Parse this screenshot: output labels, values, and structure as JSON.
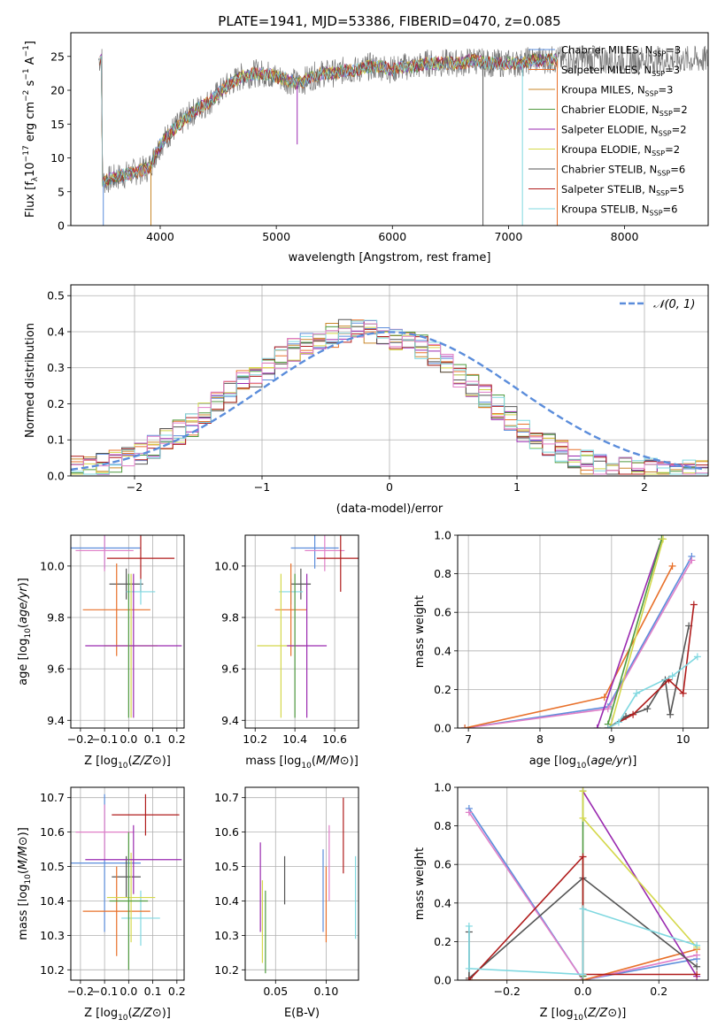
{
  "figure_title": "PLATE=1941, MJD=53386, FIBERID=0470, z=0.085",
  "colors": {
    "chabrier_miles": "#5b8ddb",
    "salpeter_miles": "#e8702a",
    "kroupa_miles": "#c9872a",
    "chabrier_elodie": "#4f9a3f",
    "salpeter_elodie": "#9a2ab0",
    "kroupa_elodie": "#d4d84a",
    "chabrier_stelib": "#555555",
    "salpeter_stelib": "#b01c1c",
    "kroupa_stelib": "#7fd8e0",
    "pink": "#e07fc8",
    "normal_curve": "#5b8ddb"
  },
  "chart_data": [
    {
      "id": "spectrum",
      "type": "line",
      "title": "PLATE=1941, MJD=53386, FIBERID=0470, z=0.085",
      "xlabel": "wavelength [Angstrom, rest frame]",
      "ylabel": "Flux [f",
      "ylabel_full": "Flux [fλ10⁻¹⁷ erg cm⁻² s⁻¹ A⁻¹]",
      "xlim": [
        3230,
        8720
      ],
      "ylim": [
        0,
        28.5
      ],
      "xticks": [
        4000,
        5000,
        6000,
        7000,
        8000
      ],
      "yticks": [
        0,
        5,
        10,
        15,
        20,
        25
      ],
      "grid": false,
      "legend_position": "top-right",
      "series_envelope": {
        "x": [
          3500,
          3600,
          3700,
          3800,
          3900,
          4000,
          4100,
          4200,
          4300,
          4400,
          4500,
          4600,
          4700,
          4800,
          4900,
          5000,
          5100,
          5200,
          5300,
          5400,
          5500,
          5600,
          5700,
          5800,
          5900,
          6000,
          6100,
          6200,
          6300,
          6400,
          6500,
          6600,
          6700,
          6800,
          6900,
          7000,
          7100,
          7200,
          7300,
          7400
        ],
        "y": [
          6.5,
          7.0,
          7.5,
          8.0,
          8.5,
          12.0,
          14.0,
          15.5,
          17.0,
          18.0,
          19.5,
          21.0,
          22.0,
          22.5,
          22.5,
          22.0,
          21.5,
          21.0,
          22.0,
          22.5,
          22.5,
          23.0,
          23.0,
          23.5,
          23.5,
          23.0,
          23.5,
          23.5,
          24.0,
          24.0,
          24.0,
          24.0,
          24.5,
          24.0,
          24.0,
          24.0,
          24.0,
          24.5,
          24.5,
          24.5
        ]
      },
      "legend": [
        {
          "label": "Chabrier MILES, N",
          "sub": "SSP",
          "tail": "=3",
          "color": "#5b8ddb"
        },
        {
          "label": "Salpeter MILES, N",
          "sub": "SSP",
          "tail": "=3",
          "color": "#e8702a"
        },
        {
          "label": "Kroupa MILES, N",
          "sub": "SSP",
          "tail": "=3",
          "color": "#c9872a"
        },
        {
          "label": "Chabrier ELODIE, N",
          "sub": "SSP",
          "tail": "=2",
          "color": "#4f9a3f"
        },
        {
          "label": "Salpeter ELODIE, N",
          "sub": "SSP",
          "tail": "=2",
          "color": "#9a2ab0"
        },
        {
          "label": "Kroupa ELODIE, N",
          "sub": "SSP",
          "tail": "=2",
          "color": "#d4d84a"
        },
        {
          "label": "Chabrier STELIB, N",
          "sub": "SSP",
          "tail": "=6",
          "color": "#555555"
        },
        {
          "label": "Salpeter STELIB, N",
          "sub": "SSP",
          "tail": "=5",
          "color": "#b01c1c"
        },
        {
          "label": "Kroupa STELIB, N",
          "sub": "SSP",
          "tail": "=6",
          "color": "#7fd8e0"
        }
      ]
    },
    {
      "id": "residuals",
      "type": "line",
      "xlabel": "(data-model)/error",
      "ylabel": "Normed distribution",
      "xlim": [
        -2.5,
        2.5
      ],
      "ylim": [
        0,
        0.53
      ],
      "xticks": [
        -2,
        -1,
        0,
        1,
        2
      ],
      "xtick_labels": [
        "−2",
        "−1",
        "0",
        "1",
        "2"
      ],
      "yticks": [
        0.0,
        0.1,
        0.2,
        0.3,
        0.4,
        0.5
      ],
      "ytick_labels": [
        "0.0",
        "0.1",
        "0.2",
        "0.3",
        "0.4",
        "0.5"
      ],
      "grid": true,
      "legend_position": "top-right",
      "normal_label": "𝒩(0, 1)",
      "bin_width": 0.1,
      "histogram_base": [
        0.02,
        0.022,
        0.03,
        0.04,
        0.05,
        0.06,
        0.08,
        0.1,
        0.12,
        0.14,
        0.17,
        0.2,
        0.23,
        0.26,
        0.28,
        0.3,
        0.33,
        0.35,
        0.37,
        0.38,
        0.39,
        0.4,
        0.4,
        0.4,
        0.39,
        0.38,
        0.37,
        0.36,
        0.34,
        0.31,
        0.28,
        0.25,
        0.22,
        0.19,
        0.16,
        0.13,
        0.11,
        0.09,
        0.07,
        0.05,
        0.04,
        0.03,
        0.025,
        0.02,
        0.02,
        0.015,
        0.015,
        0.015,
        0.015,
        0.015
      ]
    },
    {
      "id": "age_vs_Z",
      "type": "scatter",
      "xlabel": "Z [log",
      "ylabel": "age  [log",
      "xlabel_full": "Z [log10(Z/Z⊙)]",
      "ylabel_full": "age  [log10(age/yr)]",
      "xlim": [
        -0.24,
        0.23
      ],
      "ylim": [
        9.37,
        10.12
      ],
      "xticks": [
        -0.2,
        -0.1,
        0.0,
        0.1,
        0.2
      ],
      "xtick_labels": [
        "−0.2",
        "−0.1",
        "0.0",
        "0.1",
        "0.2"
      ],
      "yticks": [
        9.4,
        9.6,
        9.8,
        10.0
      ],
      "ytick_labels": [
        "9.4",
        "9.6",
        "9.8",
        "10.0"
      ],
      "grid": true,
      "points": [
        {
          "x": -0.1,
          "y": 10.07,
          "xerr": 0.15,
          "yerr": 0.08,
          "color": "#5b8ddb"
        },
        {
          "x": -0.1,
          "y": 10.06,
          "xerr": 0.12,
          "yerr": 0.08,
          "color": "#e07fc8"
        },
        {
          "x": 0.05,
          "y": 10.03,
          "xerr": 0.14,
          "yerr": 0.13,
          "color": "#b01c1c"
        },
        {
          "x": -0.01,
          "y": 9.93,
          "xerr": 0.07,
          "yerr": 0.06,
          "color": "#555555"
        },
        {
          "x": 0.05,
          "y": 9.9,
          "xerr": 0.06,
          "yerr": 0.05,
          "color": "#7fd8e0"
        },
        {
          "x": -0.05,
          "y": 9.83,
          "xerr": 0.14,
          "yerr": 0.18,
          "color": "#e8702a"
        },
        {
          "x": 0.01,
          "y": 9.69,
          "xerr": 0.11,
          "yerr": 0.28,
          "color": "#d4d84a"
        },
        {
          "x": 0.02,
          "y": 9.69,
          "xerr": 0.2,
          "yerr": 0.28,
          "color": "#9a2ab0"
        },
        {
          "x": 0.0,
          "y": 9.69,
          "xerr": 0.0,
          "yerr": 0.28,
          "color": "#4f9a3f"
        }
      ]
    },
    {
      "id": "age_vs_mass",
      "type": "scatter",
      "xlabel": "mass [log",
      "xlabel_full": "mass [log10(M/M⊙)]",
      "xlim": [
        10.15,
        10.72
      ],
      "ylim": [
        9.37,
        10.12
      ],
      "xticks": [
        10.2,
        10.4,
        10.6
      ],
      "xtick_labels": [
        "10.2",
        "10.4",
        "10.6"
      ],
      "yticks": [
        9.4,
        9.6,
        9.8,
        10.0
      ],
      "ytick_labels": [
        "9.4",
        "9.6",
        "9.8",
        "10.0"
      ],
      "grid": true,
      "points": [
        {
          "x": 10.5,
          "y": 10.07,
          "xerr": 0.12,
          "yerr": 0.08,
          "color": "#5b8ddb"
        },
        {
          "x": 10.55,
          "y": 10.06,
          "xerr": 0.1,
          "yerr": 0.08,
          "color": "#e07fc8"
        },
        {
          "x": 10.63,
          "y": 10.03,
          "xerr": 0.12,
          "yerr": 0.13,
          "color": "#b01c1c"
        },
        {
          "x": 10.43,
          "y": 9.93,
          "xerr": 0.05,
          "yerr": 0.06,
          "color": "#555555"
        },
        {
          "x": 10.38,
          "y": 9.9,
          "xerr": 0.06,
          "yerr": 0.05,
          "color": "#7fd8e0"
        },
        {
          "x": 10.38,
          "y": 9.83,
          "xerr": 0.08,
          "yerr": 0.18,
          "color": "#e8702a"
        },
        {
          "x": 10.33,
          "y": 9.69,
          "xerr": 0.12,
          "yerr": 0.28,
          "color": "#d4d84a"
        },
        {
          "x": 10.46,
          "y": 9.69,
          "xerr": 0.1,
          "yerr": 0.28,
          "color": "#9a2ab0"
        },
        {
          "x": 10.4,
          "y": 9.69,
          "xerr": 0.0,
          "yerr": 0.28,
          "color": "#4f9a3f"
        }
      ]
    },
    {
      "id": "mass_vs_Z",
      "type": "scatter",
      "xlabel": "Z [log",
      "ylabel": "mass [log",
      "xlabel_full": "Z [log10(Z/Z⊙)]",
      "ylabel_full": "mass [log10(M/M⊙)]",
      "xlim": [
        -0.24,
        0.23
      ],
      "ylim": [
        10.17,
        10.73
      ],
      "xticks": [
        -0.2,
        -0.1,
        0.0,
        0.1,
        0.2
      ],
      "xtick_labels": [
        "−0.2",
        "−0.1",
        "0.0",
        "0.1",
        "0.2"
      ],
      "yticks": [
        10.2,
        10.3,
        10.4,
        10.5,
        10.6,
        10.7
      ],
      "ytick_labels": [
        "10.2",
        "10.3",
        "10.4",
        "10.5",
        "10.6",
        "10.7"
      ],
      "grid": true,
      "points": [
        {
          "x": -0.1,
          "y": 10.51,
          "xerr": 0.15,
          "yerr": 0.2,
          "color": "#5b8ddb"
        },
        {
          "x": -0.1,
          "y": 10.6,
          "xerr": 0.12,
          "yerr": 0.08,
          "color": "#e07fc8"
        },
        {
          "x": 0.07,
          "y": 10.65,
          "xerr": 0.14,
          "yerr": 0.06,
          "color": "#b01c1c"
        },
        {
          "x": -0.01,
          "y": 10.47,
          "xerr": 0.06,
          "yerr": 0.06,
          "color": "#555555"
        },
        {
          "x": 0.05,
          "y": 10.35,
          "xerr": 0.08,
          "yerr": 0.08,
          "color": "#7fd8e0"
        },
        {
          "x": -0.05,
          "y": 10.37,
          "xerr": 0.14,
          "yerr": 0.13,
          "color": "#e8702a"
        },
        {
          "x": 0.01,
          "y": 10.41,
          "xerr": 0.1,
          "yerr": 0.13,
          "color": "#d4d84a"
        },
        {
          "x": 0.02,
          "y": 10.52,
          "xerr": 0.2,
          "yerr": 0.1,
          "color": "#9a2ab0"
        },
        {
          "x": 0.0,
          "y": 10.4,
          "xerr": 0.08,
          "yerr": 0.2,
          "color": "#4f9a3f"
        }
      ]
    },
    {
      "id": "mass_vs_EBV",
      "type": "scatter",
      "xlabel": "E(B-V)",
      "xlim": [
        0.02,
        0.132
      ],
      "ylim": [
        10.17,
        10.73
      ],
      "xticks": [
        0.05,
        0.1
      ],
      "xtick_labels": [
        "0.05",
        "0.10"
      ],
      "yticks": [
        10.2,
        10.3,
        10.4,
        10.5,
        10.6,
        10.7
      ],
      "ytick_labels": [
        "10.2",
        "10.3",
        "10.4",
        "10.5",
        "10.6",
        "10.7"
      ],
      "grid": true,
      "points": [
        {
          "x": 0.035,
          "y": 10.44,
          "yerr": 0.13,
          "color": "#9a2ab0"
        },
        {
          "x": 0.037,
          "y": 10.34,
          "yerr": 0.12,
          "color": "#d4d84a"
        },
        {
          "x": 0.04,
          "y": 10.31,
          "yerr": 0.12,
          "color": "#4f9a3f"
        },
        {
          "x": 0.059,
          "y": 10.46,
          "yerr": 0.07,
          "color": "#555555"
        },
        {
          "x": 0.097,
          "y": 10.43,
          "yerr": 0.12,
          "color": "#5b8ddb"
        },
        {
          "x": 0.1,
          "y": 10.39,
          "yerr": 0.11,
          "color": "#e8702a"
        },
        {
          "x": 0.103,
          "y": 10.51,
          "yerr": 0.11,
          "color": "#e07fc8"
        },
        {
          "x": 0.117,
          "y": 10.59,
          "yerr": 0.11,
          "color": "#b01c1c"
        },
        {
          "x": 0.129,
          "y": 10.41,
          "yerr": 0.12,
          "color": "#7fd8e0"
        }
      ]
    },
    {
      "id": "weight_vs_age",
      "type": "line",
      "xlabel": "age  [log",
      "ylabel": "mass weight",
      "xlabel_full": "age  [log10(age/yr)]",
      "xlim": [
        6.85,
        10.35
      ],
      "ylim": [
        0,
        1.0
      ],
      "xticks": [
        7,
        8,
        9,
        10
      ],
      "xtick_labels": [
        "7",
        "8",
        "9",
        "10"
      ],
      "yticks": [
        0.0,
        0.2,
        0.4,
        0.6,
        0.8,
        1.0
      ],
      "ytick_labels": [
        "0.0",
        "0.2",
        "0.4",
        "0.6",
        "0.8",
        "1.0"
      ],
      "grid": true,
      "series": [
        {
          "color": "#5b8ddb",
          "x": [
            6.95,
            8.95,
            10.12
          ],
          "y": [
            0.0,
            0.11,
            0.89
          ]
        },
        {
          "color": "#e07fc8",
          "x": [
            6.95,
            8.95,
            10.12
          ],
          "y": [
            0.0,
            0.1,
            0.87
          ]
        },
        {
          "color": "#e8702a",
          "x": [
            6.95,
            8.9,
            9.85
          ],
          "y": [
            0.0,
            0.16,
            0.84
          ]
        },
        {
          "color": "#9a2ab0",
          "x": [
            8.8,
            9.7
          ],
          "y": [
            0.0,
            0.98
          ]
        },
        {
          "color": "#4f9a3f",
          "x": [
            8.95,
            9.7
          ],
          "y": [
            0.02,
            0.98
          ]
        },
        {
          "color": "#d4d84a",
          "x": [
            8.98,
            9.72
          ],
          "y": [
            0.0,
            0.98
          ]
        },
        {
          "color": "#555555",
          "x": [
            8.95,
            9.2,
            9.5,
            9.75,
            9.82,
            10.08
          ],
          "y": [
            0.0,
            0.06,
            0.1,
            0.25,
            0.07,
            0.53
          ]
        },
        {
          "color": "#b01c1c",
          "x": [
            8.95,
            9.3,
            9.8,
            10.0,
            10.15
          ],
          "y": [
            0.0,
            0.07,
            0.25,
            0.18,
            0.64
          ]
        },
        {
          "color": "#7fd8e0",
          "x": [
            8.95,
            9.1,
            9.35,
            9.85,
            10.2
          ],
          "y": [
            0.0,
            0.03,
            0.18,
            0.27,
            0.37
          ]
        }
      ]
    },
    {
      "id": "weight_vs_Z",
      "type": "line",
      "xlabel": "Z [log",
      "ylabel": "mass weight",
      "xlabel_full": "Z [log10(Z/Z⊙)]",
      "xlim": [
        -0.33,
        0.33
      ],
      "ylim": [
        0,
        1.0
      ],
      "xticks": [
        -0.2,
        0.0,
        0.2
      ],
      "xtick_labels": [
        "−0.2",
        "0.0",
        "0.2"
      ],
      "yticks": [
        0.0,
        0.2,
        0.4,
        0.6,
        0.8,
        1.0
      ],
      "ytick_labels": [
        "0.0",
        "0.2",
        "0.4",
        "0.6",
        "0.8",
        "1.0"
      ],
      "grid": true,
      "series": [
        {
          "color": "#5b8ddb",
          "x": [
            -0.3,
            0.0,
            0.3
          ],
          "y": [
            0.89,
            0.0,
            0.11
          ]
        },
        {
          "color": "#e07fc8",
          "x": [
            -0.3,
            0.0,
            0.3
          ],
          "y": [
            0.87,
            0.0,
            0.13
          ]
        },
        {
          "color": "#e8702a",
          "x": [
            -0.3,
            0.0,
            0.3
          ],
          "y": [
            0.0,
            0.0,
            0.16
          ]
        },
        {
          "color": "#9a2ab0",
          "x": [
            0.0,
            0.3
          ],
          "y": [
            0.98,
            0.02
          ]
        },
        {
          "color": "#4f9a3f",
          "x": [
            0.0,
            0.0
          ],
          "y": [
            0.98,
            0.02
          ]
        },
        {
          "color": "#d4d84a",
          "x": [
            0.0,
            0.0,
            0.3
          ],
          "y": [
            0.98,
            0.84,
            0.17
          ]
        },
        {
          "color": "#555555",
          "x": [
            -0.3,
            -0.3,
            0.0,
            0.3
          ],
          "y": [
            0.25,
            0.01,
            0.53,
            0.07
          ]
        },
        {
          "color": "#b01c1c",
          "x": [
            -0.3,
            0.0,
            0.0,
            0.3
          ],
          "y": [
            0.0,
            0.64,
            0.03,
            0.03
          ]
        },
        {
          "color": "#7fd8e0",
          "x": [
            -0.3,
            -0.3,
            0.0,
            0.0,
            0.3
          ],
          "y": [
            0.28,
            0.06,
            0.03,
            0.37,
            0.18
          ]
        }
      ]
    }
  ]
}
